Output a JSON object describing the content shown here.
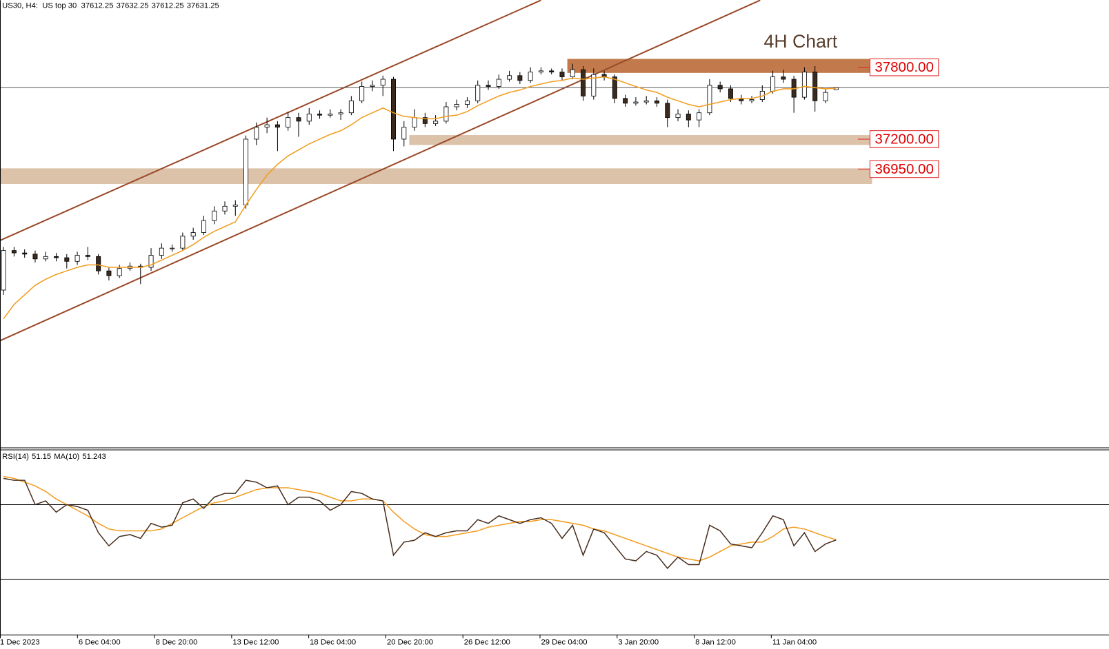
{
  "chart_data": {
    "type": "candlestick",
    "symbol": "US30, H4:",
    "name": "US top 30",
    "title": "4H Chart",
    "candles": [
      [
        35940,
        36300,
        35900,
        36270
      ],
      [
        36270,
        36300,
        36220,
        36250
      ],
      [
        36250,
        36280,
        36210,
        36240
      ],
      [
        36240,
        36270,
        36170,
        36200
      ],
      [
        36200,
        36260,
        36180,
        36220
      ],
      [
        36220,
        36250,
        36180,
        36210
      ],
      [
        36210,
        36240,
        36120,
        36180
      ],
      [
        36180,
        36260,
        36150,
        36230
      ],
      [
        36230,
        36300,
        36190,
        36220
      ],
      [
        36220,
        36240,
        36070,
        36100
      ],
      [
        36100,
        36130,
        36020,
        36060
      ],
      [
        36060,
        36150,
        36040,
        36120
      ],
      [
        36120,
        36170,
        36100,
        36140
      ],
      [
        36140,
        36160,
        35990,
        36130
      ],
      [
        36130,
        36290,
        36100,
        36230
      ],
      [
        36230,
        36330,
        36200,
        36290
      ],
      [
        36290,
        36320,
        36260,
        36290
      ],
      [
        36290,
        36420,
        36270,
        36390
      ],
      [
        36390,
        36460,
        36360,
        36420
      ],
      [
        36420,
        36560,
        36400,
        36520
      ],
      [
        36520,
        36640,
        36490,
        36600
      ],
      [
        36600,
        36680,
        36570,
        36640
      ],
      [
        36640,
        36690,
        36560,
        36650
      ],
      [
        36650,
        37230,
        36620,
        37200
      ],
      [
        37200,
        37340,
        37150,
        37300
      ],
      [
        37300,
        37380,
        37250,
        37320
      ],
      [
        37320,
        37350,
        37100,
        37300
      ],
      [
        37300,
        37430,
        37270,
        37380
      ],
      [
        37380,
        37420,
        37220,
        37350
      ],
      [
        37350,
        37460,
        37320,
        37410
      ],
      [
        37410,
        37440,
        37370,
        37400
      ],
      [
        37400,
        37450,
        37380,
        37410
      ],
      [
        37410,
        37450,
        37360,
        37420
      ],
      [
        37420,
        37560,
        37400,
        37520
      ],
      [
        37520,
        37680,
        37500,
        37640
      ],
      [
        37640,
        37690,
        37600,
        37650
      ],
      [
        37650,
        37730,
        37560,
        37700
      ],
      [
        37700,
        37720,
        37100,
        37200
      ],
      [
        37200,
        37350,
        37140,
        37300
      ],
      [
        37300,
        37450,
        37270,
        37380
      ],
      [
        37380,
        37420,
        37300,
        37330
      ],
      [
        37330,
        37400,
        37310,
        37350
      ],
      [
        37350,
        37510,
        37330,
        37470
      ],
      [
        37470,
        37530,
        37440,
        37490
      ],
      [
        37490,
        37550,
        37460,
        37520
      ],
      [
        37520,
        37690,
        37500,
        37650
      ],
      [
        37650,
        37690,
        37610,
        37640
      ],
      [
        37640,
        37740,
        37620,
        37700
      ],
      [
        37700,
        37770,
        37680,
        37730
      ],
      [
        37730,
        37760,
        37660,
        37690
      ],
      [
        37690,
        37800,
        37670,
        37760
      ],
      [
        37760,
        37800,
        37740,
        37770
      ],
      [
        37770,
        37790,
        37740,
        37760
      ],
      [
        37760,
        37790,
        37690,
        37720
      ],
      [
        37720,
        37830,
        37700,
        37780
      ],
      [
        37780,
        37810,
        37520,
        37560
      ],
      [
        37560,
        37790,
        37530,
        37740
      ],
      [
        37740,
        37770,
        37690,
        37720
      ],
      [
        37720,
        37740,
        37500,
        37540
      ],
      [
        37540,
        37570,
        37470,
        37500
      ],
      [
        37500,
        37550,
        37480,
        37510
      ],
      [
        37510,
        37560,
        37490,
        37520
      ],
      [
        37520,
        37550,
        37470,
        37500
      ],
      [
        37500,
        37530,
        37300,
        37380
      ],
      [
        37380,
        37450,
        37350,
        37410
      ],
      [
        37410,
        37440,
        37300,
        37360
      ],
      [
        37360,
        37450,
        37300,
        37420
      ],
      [
        37420,
        37700,
        37400,
        37650
      ],
      [
        37650,
        37680,
        37590,
        37620
      ],
      [
        37620,
        37650,
        37510,
        37540
      ],
      [
        37540,
        37570,
        37490,
        37520
      ],
      [
        37520,
        37560,
        37500,
        37530
      ],
      [
        37530,
        37650,
        37510,
        37600
      ],
      [
        37600,
        37770,
        37580,
        37720
      ],
      [
        37720,
        37780,
        37670,
        37700
      ],
      [
        37700,
        37730,
        37420,
        37550
      ],
      [
        37550,
        37800,
        37530,
        37760
      ],
      [
        37760,
        37810,
        37430,
        37520
      ],
      [
        37520,
        37620,
        37500,
        37590
      ],
      [
        37612.25,
        37632.25,
        37612.25,
        37631.25
      ]
    ],
    "ma": [
      35700,
      35820,
      35900,
      35980,
      36030,
      36070,
      36100,
      36130,
      36150,
      36150,
      36130,
      36130,
      36130,
      36130,
      36150,
      36190,
      36230,
      36270,
      36320,
      36380,
      36430,
      36470,
      36510,
      36650,
      36780,
      36900,
      36990,
      37060,
      37110,
      37160,
      37200,
      37240,
      37270,
      37320,
      37380,
      37420,
      37460,
      37420,
      37390,
      37380,
      37370,
      37370,
      37390,
      37400,
      37430,
      37480,
      37520,
      37560,
      37590,
      37610,
      37640,
      37660,
      37680,
      37690,
      37710,
      37700,
      37710,
      37720,
      37700,
      37670,
      37640,
      37610,
      37590,
      37550,
      37520,
      37490,
      37470,
      37490,
      37510,
      37530,
      37540,
      37540,
      37560,
      37600,
      37620,
      37620,
      37640,
      37630,
      37620,
      37625
    ],
    "ma_color": "#f39c1f",
    "bull_color": "#ffffff",
    "bear_color": "#3b2b1e",
    "ylim": [
      34626,
      38360
    ],
    "channel": [
      {
        "from": [
          -0.34,
          36354
        ],
        "to": [
          51,
          38360
        ]
      },
      {
        "from": [
          -0.34,
          35517
        ],
        "to": [
          71.8,
          38360
        ]
      }
    ],
    "channel_color": "#9b4a2a",
    "levels": [
      {
        "value": 37800,
        "label": "37800.00",
        "low": 37753,
        "high": 37870,
        "start": 54,
        "color": "#c27a4c"
      },
      {
        "value": 37200,
        "label": "37200.00",
        "low": 37151,
        "high": 37234,
        "start": 39,
        "color": "#dcc2a8"
      },
      {
        "value": 36950,
        "label": "36950.00",
        "low": 36826,
        "high": 36956,
        "start": 0,
        "color": "#dcc2a8"
      }
    ],
    "x_labels": [
      "1 Dec 2023",
      "6 Dec 04:00",
      "8 Dec 20:00",
      "13 Dec 12:00",
      "18 Dec 04:00",
      "20 Dec 20:00",
      "26 Dec 12:00",
      "29 Dec 04:00",
      "3 Jan 20:00",
      "8 Jan 12:00",
      "11 Jan 04:00"
    ],
    "rsi": {
      "label": "RSI(14)",
      "ma_label": "MA(10)",
      "values": [
        84,
        83,
        83,
        70,
        72,
        66,
        70,
        69,
        67,
        55,
        48,
        53,
        54,
        52,
        60,
        58,
        59,
        71,
        73,
        68,
        74,
        76,
        76,
        83,
        82,
        79,
        80,
        70,
        74,
        74,
        72,
        67,
        70,
        77,
        76,
        73,
        72,
        43,
        50,
        51,
        55,
        53,
        55,
        56,
        56,
        62,
        60,
        64,
        62,
        60,
        62,
        63,
        60,
        52,
        59,
        43,
        57,
        55,
        48,
        41,
        40,
        45,
        43,
        36,
        42,
        38,
        38,
        59,
        56,
        49,
        48,
        47,
        55,
        64,
        62,
        48,
        55,
        45,
        49,
        51.15
      ],
      "ma": [
        85,
        84,
        82,
        80,
        77,
        73,
        70,
        67,
        64,
        60,
        57,
        56,
        56,
        56,
        56,
        57,
        60,
        63,
        66,
        69,
        71,
        72,
        74,
        76,
        78,
        79,
        79,
        79,
        78,
        77,
        76,
        74,
        72,
        72,
        73,
        73,
        72,
        66,
        61,
        57,
        54,
        53,
        53,
        54,
        55,
        56,
        58,
        59,
        60,
        61,
        61,
        62,
        62,
        61,
        60,
        59,
        57,
        56,
        54,
        52,
        50,
        48,
        46,
        44,
        42,
        41,
        40,
        42,
        45,
        48,
        49,
        50,
        50,
        53,
        57,
        58,
        57,
        55,
        53,
        51.243
      ],
      "ylim": [
        0.6,
        99.4
      ],
      "levels": [
        30,
        70
      ],
      "color": "#4a3020",
      "ma_color": "#f39c1f"
    }
  }
}
